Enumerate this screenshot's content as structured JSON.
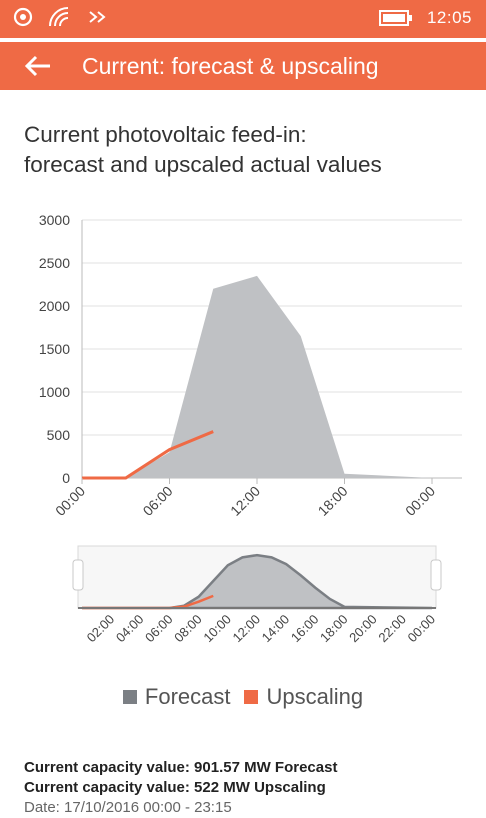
{
  "status_bar": {
    "time": "12:05"
  },
  "app_bar": {
    "title": "Current: forecast & upscaling"
  },
  "heading": {
    "line1": "Current photovoltaic feed-in:",
    "line2": "forecast and upscaled actual values"
  },
  "colors": {
    "accent": "#ef6a45",
    "forecast": "#bfc1c4",
    "forecast_nav": "#7b7f84",
    "upscaling": "#ef6a45"
  },
  "chart_data": [
    {
      "type": "area",
      "title": "",
      "ylim": [
        0,
        3000
      ],
      "y_ticks": [
        "0",
        "500",
        "1000",
        "1500",
        "2000",
        "2500",
        "3000"
      ],
      "x_ticks": [
        "00:00",
        "06:00",
        "12:00",
        "18:00",
        "00:00"
      ],
      "x_range_hours": [
        0,
        24
      ],
      "grid": true,
      "series": [
        {
          "name": "Forecast",
          "type": "area",
          "x": [
            0,
            3,
            6,
            9,
            12,
            15,
            18,
            24
          ],
          "values": [
            0,
            0,
            300,
            2200,
            2350,
            1650,
            50,
            0
          ]
        },
        {
          "name": "Upscaling",
          "type": "line",
          "x": [
            0,
            3,
            6,
            9
          ],
          "values": [
            0,
            0,
            330,
            540
          ]
        }
      ]
    },
    {
      "type": "area",
      "x_ticks": [
        "02:00",
        "04:00",
        "06:00",
        "08:00",
        "10:00",
        "12:00",
        "14:00",
        "16:00",
        "18:00",
        "20:00",
        "22:00",
        "00:00"
      ],
      "x_range_hours": [
        0,
        24
      ],
      "series": [
        {
          "name": "Forecast",
          "type": "area",
          "x": [
            0,
            6,
            7,
            8,
            9,
            10,
            11,
            12,
            13,
            14,
            15,
            16,
            17,
            18,
            24
          ],
          "values": [
            0,
            0,
            100,
            500,
            1200,
            1900,
            2250,
            2350,
            2250,
            1950,
            1450,
            900,
            400,
            50,
            0
          ]
        },
        {
          "name": "Upscaling",
          "type": "line",
          "x": [
            0,
            6,
            7,
            8,
            9
          ],
          "values": [
            0,
            0,
            60,
            280,
            540
          ]
        }
      ]
    }
  ],
  "legend": {
    "forecast": "Forecast",
    "upscaling": "Upscaling"
  },
  "info": {
    "line1": "Current capacity value: 901.57 MW Forecast",
    "line2": "Current capacity value: 522 MW Upscaling",
    "line3": "Date: 17/10/2016 00:00 - 23:15"
  }
}
